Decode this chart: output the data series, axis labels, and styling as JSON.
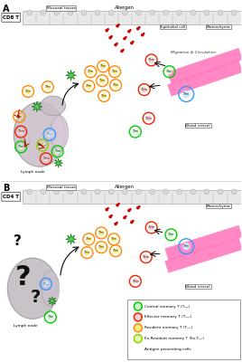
{
  "fig_width": 2.68,
  "fig_height": 4.0,
  "dpi": 100,
  "bg_color": "#ffffff",
  "panel_a_label": "A",
  "panel_b_label": "B",
  "cd8_label": "CD8 T",
  "cd4_label": "CD4 T",
  "mucosal_tissue_label": "Mucosal tissue",
  "allergen_label": "Allergen",
  "epithelial_cell_label": "Epithelial cell",
  "parenchyma_label": "Parenchyma",
  "migration_label": "Migration & Circulation",
  "blood_vessel_label": "Blood vessel",
  "lymph_node_label": "Lymph node",
  "color_green_ring": "#00cc00",
  "color_red_ring": "#ee2200",
  "color_orange_ring": "#ff8800",
  "color_yellow_green_ring": "#99cc00",
  "color_blue_ring": "#3399ff",
  "color_inner_yellow": "#ffee88",
  "color_lymph_node": "#c8b8c8",
  "legend_items": [
    {
      "label": "Central memory T (T₂ₘ)",
      "color": "#00cc00",
      "inner": "#ccffcc"
    },
    {
      "label": "Effector memory T (Tₘₘ)",
      "color": "#ee2200",
      "inner": "#ffcccc"
    },
    {
      "label": "Resident memory T (Tₘₙ)",
      "color": "#ff8800",
      "inner": "#ffee88"
    },
    {
      "label": "Ex-Resident memory T (Ex-Tₘₙ)",
      "color": "#99cc00",
      "inner": "#ddffaa"
    },
    {
      "label": "Antigen presenting cells",
      "color": "#33aa33",
      "inner": "#33aa33"
    }
  ]
}
